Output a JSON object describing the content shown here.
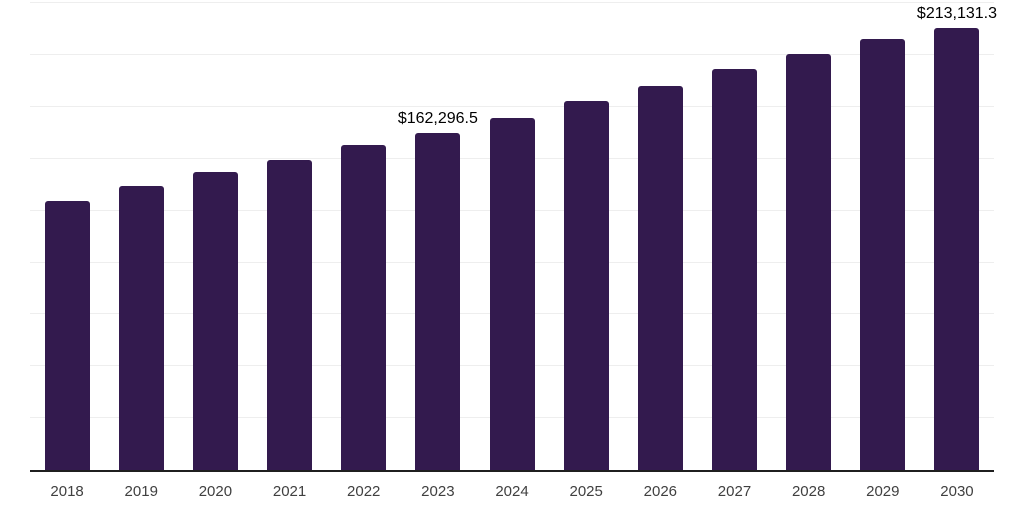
{
  "chart_data": {
    "type": "bar",
    "title": "",
    "xlabel": "",
    "ylabel": "",
    "categories": [
      "2018",
      "2019",
      "2020",
      "2021",
      "2022",
      "2023",
      "2024",
      "2025",
      "2026",
      "2027",
      "2028",
      "2029",
      "2030"
    ],
    "values": [
      129500,
      137000,
      143500,
      149500,
      156500,
      162296.5,
      169500,
      178000,
      185000,
      193500,
      200500,
      208000,
      213131.3
    ],
    "data_labels": [
      "",
      "",
      "",
      "",
      "",
      "$162,296.5",
      "",
      "",
      "",
      "",
      "",
      "",
      "$213,131.3"
    ],
    "ylim": [
      0,
      226600
    ],
    "gridline_values": [
      25000,
      50000,
      75000,
      100000,
      125000,
      150000,
      175000,
      200000,
      225000
    ],
    "grid": "horizontal",
    "legend_position": "none",
    "colors": {
      "bar": "#331a4e",
      "axis_line": "#1f1f1f",
      "gridline": "#eeeeee",
      "value_label": "#000000",
      "tick_label": "#404040"
    }
  }
}
